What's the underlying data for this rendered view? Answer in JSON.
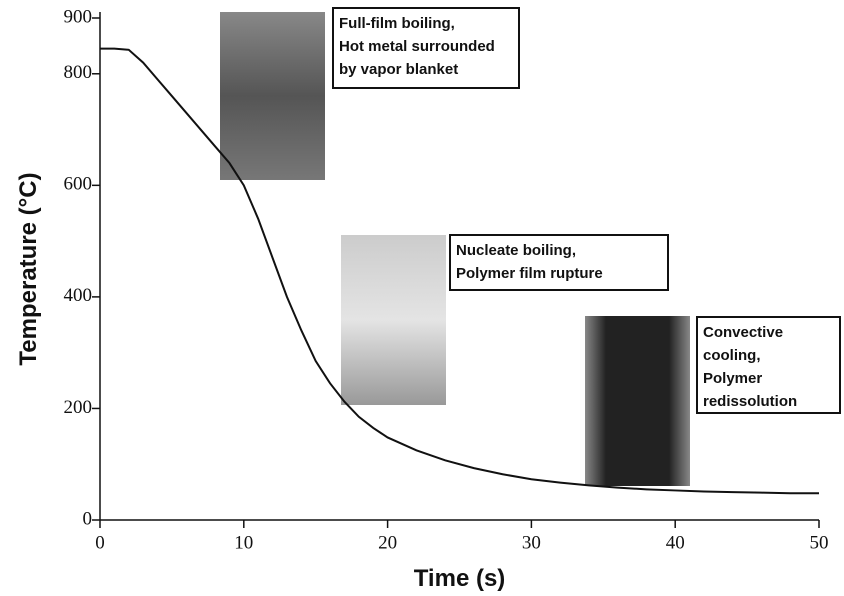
{
  "chart_data": {
    "type": "line",
    "xlabel": "Time (s)",
    "ylabel": "Temperature (°C)",
    "x": [
      0,
      1,
      2,
      3,
      4,
      5,
      6,
      7,
      8,
      9,
      10,
      11,
      12,
      13,
      14,
      15,
      16,
      17,
      18,
      19,
      20,
      22,
      24,
      26,
      28,
      30,
      32,
      34,
      36,
      38,
      40,
      42,
      44,
      46,
      48,
      50
    ],
    "values": [
      845,
      845,
      843,
      820,
      790,
      760,
      730,
      700,
      670,
      640,
      600,
      540,
      470,
      400,
      340,
      285,
      245,
      212,
      185,
      165,
      148,
      125,
      107,
      93,
      82,
      73,
      67,
      62,
      58,
      55,
      53,
      51,
      50,
      49,
      48,
      48
    ],
    "color": "#111111",
    "xlim": [
      0,
      50
    ],
    "xticks": [
      0,
      10,
      20,
      30,
      40,
      50
    ],
    "ylim": [
      0,
      900
    ],
    "yticks": [
      0,
      200,
      400,
      600,
      800,
      900
    ],
    "annotations": [
      [
        "Full-film boiling,",
        "Hot metal surrounded",
        "by vapor blanket"
      ],
      [
        "Nucleate boiling,",
        "Polymer film rupture"
      ],
      [
        "Convective",
        "cooling,",
        "Polymer",
        "redissolution"
      ]
    ]
  }
}
